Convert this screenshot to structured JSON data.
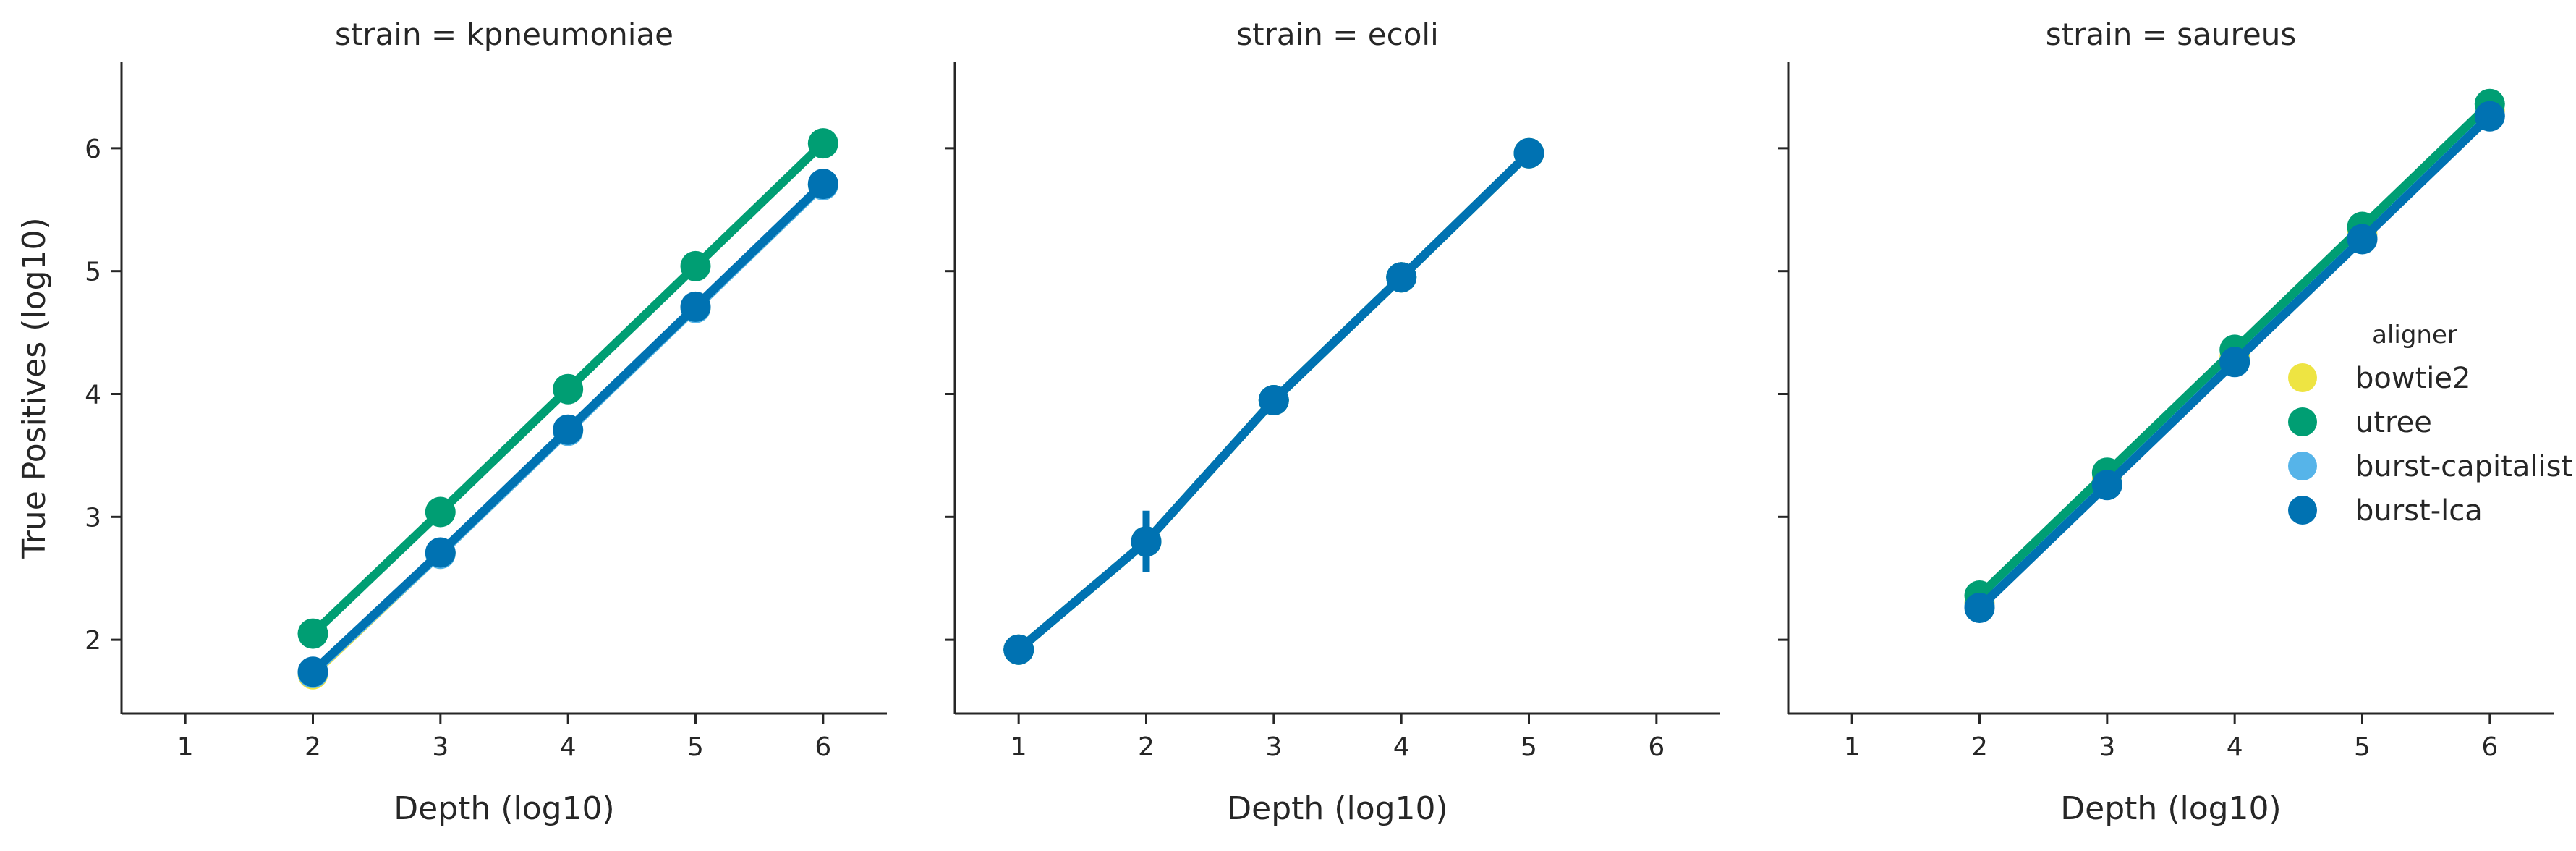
{
  "chart_data": {
    "type": "line",
    "ylabel": "True Positives (log10)",
    "xlabel": "Depth (log10)",
    "x_ticks": [
      "1",
      "2",
      "3",
      "4",
      "5",
      "6"
    ],
    "y_ticks": [
      "2",
      "3",
      "4",
      "5",
      "6"
    ],
    "xlim": [
      0.5,
      6.5
    ],
    "ylim": [
      1.4,
      6.7
    ],
    "legend": {
      "title": "aligner",
      "placement": "right",
      "entries": [
        {
          "name": "bowtie2",
          "color": "#eee442"
        },
        {
          "name": "utree",
          "color": "#009e73"
        },
        {
          "name": "burst-capitalist",
          "color": "#56b4e9"
        },
        {
          "name": "burst-lca",
          "color": "#0072b2"
        }
      ]
    },
    "panels": [
      {
        "title": "strain = kpneumoniae",
        "series": [
          {
            "name": "bowtie2",
            "color": "#eee442",
            "x": [
              2,
              3,
              4,
              5,
              6
            ],
            "y": [
              1.72,
              2.7,
              3.7,
              4.7,
              5.7
            ]
          },
          {
            "name": "burst-capitalist",
            "color": "#56b4e9",
            "x": [
              2,
              3,
              4,
              5,
              6
            ],
            "y": [
              1.73,
              2.7,
              3.7,
              4.7,
              5.7
            ]
          },
          {
            "name": "utree",
            "color": "#009e73",
            "x": [
              2,
              3,
              4,
              5,
              6
            ],
            "y": [
              2.05,
              3.04,
              4.04,
              5.04,
              6.04
            ]
          },
          {
            "name": "burst-lca",
            "color": "#0072b2",
            "x": [
              2,
              3,
              4,
              5,
              6
            ],
            "y": [
              1.74,
              2.71,
              3.71,
              4.71,
              5.71
            ]
          }
        ]
      },
      {
        "title": "strain = ecoli",
        "series": [
          {
            "name": "bowtie2",
            "color": "#eee442",
            "x": [
              1,
              2,
              3,
              4,
              5
            ],
            "y": [
              1.92,
              2.8,
              3.95,
              4.95,
              5.96
            ]
          },
          {
            "name": "utree",
            "color": "#009e73",
            "x": [
              1,
              2,
              3,
              4,
              5
            ],
            "y": [
              1.92,
              2.8,
              3.95,
              4.95,
              5.96
            ]
          },
          {
            "name": "burst-capitalist",
            "color": "#56b4e9",
            "x": [
              1,
              2,
              3,
              4,
              5
            ],
            "y": [
              1.92,
              2.8,
              3.95,
              4.95,
              5.96
            ]
          },
          {
            "name": "burst-lca",
            "color": "#0072b2",
            "x": [
              1,
              2,
              3,
              4,
              5
            ],
            "y": [
              1.92,
              2.8,
              3.95,
              4.95,
              5.96
            ],
            "err": [
              0,
              0.25,
              0,
              0,
              0
            ]
          }
        ]
      },
      {
        "title": "strain = saureus",
        "series": [
          {
            "name": "bowtie2",
            "color": "#eee442",
            "x": [
              2,
              3,
              4,
              5,
              6
            ],
            "y": [
              2.3,
              3.3,
              4.3,
              5.3,
              6.3
            ]
          },
          {
            "name": "utree",
            "color": "#009e73",
            "x": [
              2,
              3,
              4,
              5,
              6
            ],
            "y": [
              2.36,
              3.36,
              4.36,
              5.36,
              6.36
            ]
          },
          {
            "name": "burst-capitalist",
            "color": "#56b4e9",
            "x": [
              2,
              3,
              4,
              5,
              6
            ],
            "y": [
              2.28,
              3.27,
              4.27,
              5.27,
              6.27
            ]
          },
          {
            "name": "burst-lca",
            "color": "#0072b2",
            "x": [
              2,
              3,
              4,
              5,
              6
            ],
            "y": [
              2.26,
              3.26,
              4.26,
              5.26,
              6.26
            ]
          }
        ]
      }
    ]
  }
}
